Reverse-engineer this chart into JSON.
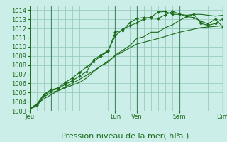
{
  "bg_color": "#cceee8",
  "grid_color": "#99ccbb",
  "line_color": "#1a6b1a",
  "ylim": [
    1003,
    1014.5
  ],
  "yticks": [
    1003,
    1004,
    1005,
    1006,
    1007,
    1008,
    1009,
    1010,
    1011,
    1012,
    1013,
    1014
  ],
  "xlabel": "Pression niveau de la mer( hPa )",
  "xlabel_fontsize": 8,
  "tick_fontsize": 6,
  "day_labels": [
    "Jeu",
    "Lun",
    "Ven",
    "Sam",
    "Dim"
  ],
  "day_positions": [
    0,
    12,
    15,
    21,
    27
  ],
  "vline_positions": [
    3,
    12,
    15,
    21,
    27
  ],
  "series": [
    {
      "x": [
        0,
        1,
        2,
        3,
        4,
        5,
        6,
        7,
        8,
        9,
        10,
        11,
        12,
        13,
        14,
        15,
        16,
        17,
        18,
        19,
        20,
        21,
        22,
        23,
        24,
        25,
        26,
        27
      ],
      "y": [
        1003.2,
        1003.7,
        1004.8,
        1005.3,
        1005.5,
        1006.1,
        1006.6,
        1007.2,
        1007.8,
        1008.4,
        1009.0,
        1009.5,
        1011.6,
        1011.8,
        1012.6,
        1013.1,
        1013.2,
        1013.15,
        1013.1,
        1013.5,
        1013.85,
        1013.6,
        1013.3,
        1013.2,
        1012.8,
        1012.5,
        1013.05,
        1012.2
      ],
      "marker": true
    },
    {
      "x": [
        0,
        1,
        2,
        3,
        4,
        5,
        6,
        7,
        8,
        9,
        10,
        11,
        12,
        13,
        14,
        15,
        16,
        17,
        18,
        19,
        20,
        21,
        22,
        23,
        24,
        25,
        26,
        27
      ],
      "y": [
        1003.2,
        1003.6,
        1004.7,
        1005.2,
        1005.4,
        1005.9,
        1006.3,
        1006.8,
        1007.3,
        1008.6,
        1009.1,
        1009.6,
        1011.2,
        1011.9,
        1012.3,
        1012.6,
        1013.05,
        1013.25,
        1013.8,
        1013.85,
        1013.55,
        1013.55,
        1013.45,
        1013.55,
        1012.55,
        1012.35,
        1012.55,
        1013.05
      ],
      "marker": true
    },
    {
      "x": [
        0,
        1,
        2,
        3,
        4,
        5,
        6,
        7,
        8,
        9,
        10,
        11,
        12,
        13,
        14,
        15,
        16,
        17,
        18,
        19,
        20,
        21,
        22,
        23,
        24,
        25,
        26,
        27
      ],
      "y": [
        1003.2,
        1003.5,
        1004.5,
        1005.0,
        1005.2,
        1005.5,
        1005.8,
        1006.1,
        1006.6,
        1007.3,
        1007.9,
        1008.3,
        1009.1,
        1009.6,
        1010.1,
        1010.9,
        1011.1,
        1011.6,
        1011.6,
        1012.1,
        1012.4,
        1012.9,
        1013.3,
        1013.55,
        1013.55,
        1013.45,
        1013.35,
        1013.45
      ],
      "marker": false
    },
    {
      "x": [
        0,
        2,
        4,
        6,
        8,
        10,
        12,
        15,
        18,
        21,
        24,
        27
      ],
      "y": [
        1003.2,
        1004.3,
        1005.2,
        1006.0,
        1006.9,
        1007.9,
        1009.0,
        1010.3,
        1010.9,
        1011.6,
        1012.1,
        1012.3
      ],
      "marker": false
    }
  ]
}
